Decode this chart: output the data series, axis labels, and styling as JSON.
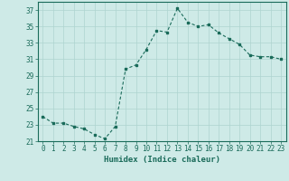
{
  "x": [
    0,
    1,
    2,
    3,
    4,
    5,
    6,
    7,
    8,
    9,
    10,
    11,
    12,
    13,
    14,
    15,
    16,
    17,
    18,
    19,
    20,
    21,
    22,
    23
  ],
  "y": [
    24.0,
    23.2,
    23.2,
    22.8,
    22.5,
    21.8,
    21.3,
    22.8,
    29.8,
    30.3,
    32.2,
    34.5,
    34.3,
    37.2,
    35.5,
    35.0,
    35.2,
    34.2,
    33.5,
    32.8,
    31.5,
    31.3,
    31.3,
    31.0
  ],
  "line_color": "#1a6b5a",
  "marker": "s",
  "marker_size": 2.0,
  "bg_color": "#ceeae7",
  "grid_color": "#aed4d0",
  "xlabel": "Humidex (Indice chaleur)",
  "xlim": [
    -0.5,
    23.5
  ],
  "ylim": [
    21,
    38
  ],
  "yticks": [
    21,
    23,
    25,
    27,
    29,
    31,
    33,
    35,
    37
  ],
  "xticks": [
    0,
    1,
    2,
    3,
    4,
    5,
    6,
    7,
    8,
    9,
    10,
    11,
    12,
    13,
    14,
    15,
    16,
    17,
    18,
    19,
    20,
    21,
    22,
    23
  ],
  "tick_color": "#1a6b5a",
  "axis_color": "#1a6b5a",
  "xlabel_fontsize": 6.5,
  "tick_fontsize": 5.5
}
